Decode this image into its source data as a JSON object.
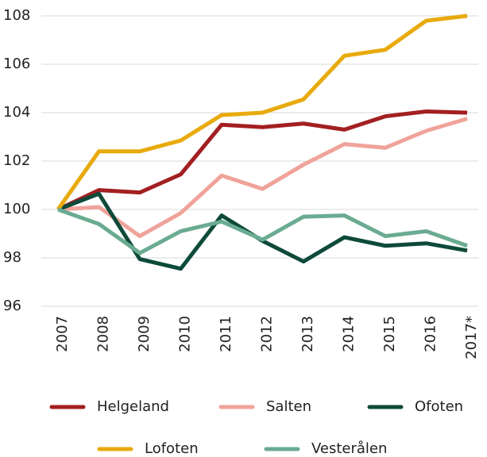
{
  "chart_data": {
    "type": "line",
    "categories": [
      "2007",
      "2008",
      "2009",
      "2010",
      "2011",
      "2012",
      "2013",
      "2014",
      "2015",
      "2016",
      "2017*"
    ],
    "series": [
      {
        "name": "Helgeland",
        "color": "#a31f21",
        "values": [
          100,
          100.8,
          100.7,
          101.45,
          103.5,
          103.4,
          103.55,
          103.3,
          103.85,
          104.05,
          104.0
        ]
      },
      {
        "name": "Salten",
        "color": "#f0a39a",
        "values": [
          100,
          100.1,
          98.9,
          99.85,
          101.4,
          100.85,
          101.85,
          102.7,
          102.55,
          103.25,
          103.75
        ]
      },
      {
        "name": "Ofoten",
        "color": "#0d4a3a",
        "values": [
          100,
          100.65,
          97.95,
          97.55,
          99.75,
          98.7,
          97.85,
          98.85,
          98.5,
          98.6,
          98.3
        ]
      },
      {
        "name": "Lofoten",
        "color": "#e8aa0c",
        "values": [
          100,
          102.4,
          102.4,
          102.85,
          103.9,
          104.0,
          104.55,
          106.35,
          106.6,
          107.8,
          108.0
        ]
      },
      {
        "name": "Vesterålen",
        "color": "#6aab91",
        "values": [
          100,
          99.4,
          98.2,
          99.1,
          99.5,
          98.75,
          99.7,
          99.75,
          98.9,
          99.1,
          98.5
        ]
      }
    ],
    "ylim": [
      96,
      108
    ],
    "yticks": [
      96,
      98,
      100,
      102,
      104,
      106,
      108
    ],
    "grid": true
  }
}
